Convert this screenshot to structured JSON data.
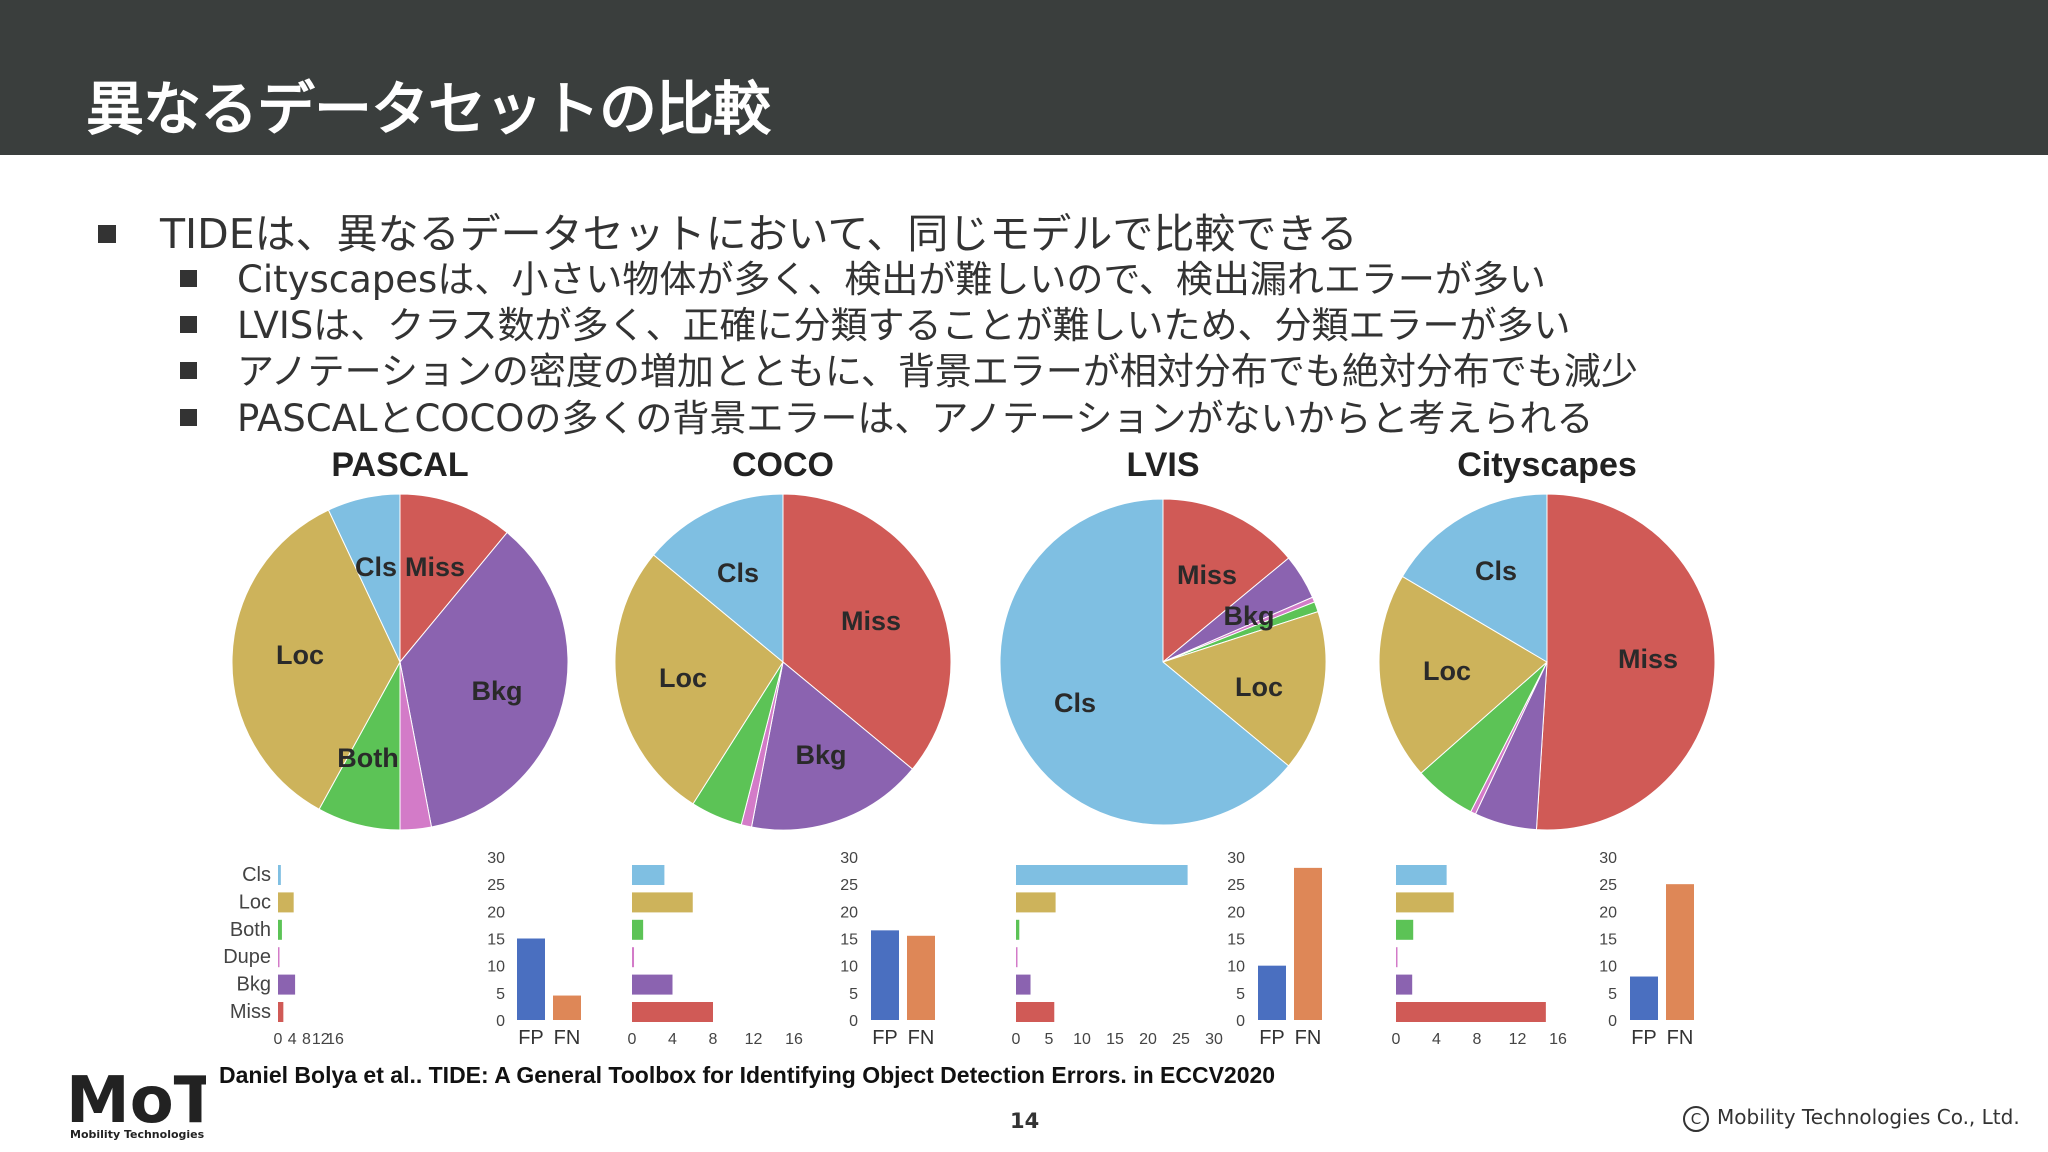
{
  "slide": {
    "title": "異なるデータセットの比較",
    "bullets": [
      "TIDEは、異なるデータセットにおいて、同じモデルで比較できる",
      "Cityscapesは、小さい物体が多く、検出が難しいので、検出漏れエラーが多い",
      "LVISは、クラス数が多く、正確に分類することが難しいため、分類エラーが多い",
      "アノテーションの密度の増加とともに、背景エラーが相対分布でも絶対分布でも減少",
      "PASCALとCOCOの多くの背景エラーは、アノテーションがないからと考えられる"
    ],
    "citation": "Daniel Bolya et al.. TIDE: A General Toolbox for Identifying Object Detection Errors. in ECCV2020",
    "page_number": "14",
    "copyright": "Mobility Technologies Co., Ltd.",
    "copyright_symbol": "C",
    "logo_text": "MoT",
    "logo_subtext": "Mobility Technologies"
  },
  "colors": {
    "header_bg": "#3a3e3d",
    "Miss": "#d05a56",
    "Bkg": "#8b63b0",
    "Dupe": "#d37bc8",
    "Both": "#5cc356",
    "Loc": "#cdb35b",
    "Cls": "#7fbfe2",
    "FP": "#4a6fc0",
    "FN": "#de8757"
  },
  "chart_data": [
    {
      "type": "pie",
      "title": "PASCAL",
      "slices": [
        {
          "label": "Miss",
          "value": 11
        },
        {
          "label": "Bkg",
          "value": 36
        },
        {
          "label": "Dupe",
          "value": 3
        },
        {
          "label": "Both",
          "value": 8
        },
        {
          "label": "Loc",
          "value": 35
        },
        {
          "label": "Cls",
          "value": 7
        }
      ],
      "slice_labels_shown": [
        "Cls",
        "Miss",
        "Loc",
        "Bkg",
        "Both"
      ],
      "error_bars": {
        "type": "bar",
        "categories": [
          "Cls",
          "Loc",
          "Both",
          "Dupe",
          "Bkg",
          "Miss"
        ],
        "values": [
          0.8,
          4.4,
          1.1,
          0.3,
          4.8,
          1.5
        ],
        "xlim": [
          0,
          16
        ],
        "xticks": [
          "0",
          "4",
          "8",
          "12",
          "16"
        ]
      },
      "fp_fn": {
        "type": "bar",
        "categories": [
          "FP",
          "FN"
        ],
        "values": [
          15,
          4.5
        ],
        "ylim": [
          0,
          30
        ],
        "yticks": [
          "0",
          "5",
          "10",
          "15",
          "20",
          "25",
          "30"
        ]
      }
    },
    {
      "type": "pie",
      "title": "COCO",
      "slices": [
        {
          "label": "Miss",
          "value": 36
        },
        {
          "label": "Bkg",
          "value": 17
        },
        {
          "label": "Dupe",
          "value": 1
        },
        {
          "label": "Both",
          "value": 5
        },
        {
          "label": "Loc",
          "value": 27
        },
        {
          "label": "Cls",
          "value": 14
        }
      ],
      "slice_labels_shown": [
        "Cls",
        "Miss",
        "Loc",
        "Bkg"
      ],
      "error_bars": {
        "type": "bar",
        "categories": [
          "Cls",
          "Loc",
          "Both",
          "Dupe",
          "Bkg",
          "Miss"
        ],
        "values": [
          3.2,
          6.0,
          1.1,
          0.2,
          4.0,
          8.0
        ],
        "xlim": [
          0,
          16
        ],
        "xticks": [
          "0",
          "4",
          "8",
          "12",
          "16"
        ]
      },
      "fp_fn": {
        "type": "bar",
        "categories": [
          "FP",
          "FN"
        ],
        "values": [
          16.5,
          15.5
        ],
        "ylim": [
          0,
          30
        ],
        "yticks": [
          "0",
          "5",
          "10",
          "15",
          "20",
          "25",
          "30"
        ]
      }
    },
    {
      "type": "pie",
      "title": "LVIS",
      "slices": [
        {
          "label": "Miss",
          "value": 14
        },
        {
          "label": "Bkg",
          "value": 4.5
        },
        {
          "label": "Dupe",
          "value": 0.5
        },
        {
          "label": "Both",
          "value": 1
        },
        {
          "label": "Loc",
          "value": 16
        },
        {
          "label": "Cls",
          "value": 64
        }
      ],
      "slice_labels_shown": [
        "Miss",
        "Bkg",
        "Loc",
        "Cls"
      ],
      "error_bars": {
        "type": "bar",
        "categories": [
          "Cls",
          "Loc",
          "Both",
          "Dupe",
          "Bkg",
          "Miss"
        ],
        "values": [
          26,
          6.0,
          0.5,
          0.2,
          2.2,
          5.8
        ],
        "xlim": [
          0,
          30
        ],
        "xticks": [
          "0",
          "5",
          "10",
          "15",
          "20",
          "25",
          "30"
        ]
      },
      "fp_fn": {
        "type": "bar",
        "categories": [
          "FP",
          "FN"
        ],
        "values": [
          10,
          28
        ],
        "ylim": [
          0,
          30
        ],
        "yticks": [
          "0",
          "5",
          "10",
          "15",
          "20",
          "25",
          "30"
        ]
      }
    },
    {
      "type": "pie",
      "title": "Cityscapes",
      "slices": [
        {
          "label": "Miss",
          "value": 51
        },
        {
          "label": "Bkg",
          "value": 6
        },
        {
          "label": "Dupe",
          "value": 0.5
        },
        {
          "label": "Both",
          "value": 6
        },
        {
          "label": "Loc",
          "value": 20
        },
        {
          "label": "Cls",
          "value": 16.5
        }
      ],
      "slice_labels_shown": [
        "Cls",
        "Loc",
        "Miss"
      ],
      "error_bars": {
        "type": "bar",
        "categories": [
          "Cls",
          "Loc",
          "Both",
          "Dupe",
          "Bkg",
          "Miss"
        ],
        "values": [
          5.0,
          5.7,
          1.7,
          0.1,
          1.6,
          14.8
        ],
        "xlim": [
          0,
          16
        ],
        "xticks": [
          "0",
          "4",
          "8",
          "12",
          "16"
        ]
      },
      "fp_fn": {
        "type": "bar",
        "categories": [
          "FP",
          "FN"
        ],
        "values": [
          8,
          25
        ],
        "ylim": [
          0,
          30
        ],
        "yticks": [
          "0",
          "5",
          "10",
          "15",
          "20",
          "25",
          "30"
        ]
      }
    }
  ]
}
